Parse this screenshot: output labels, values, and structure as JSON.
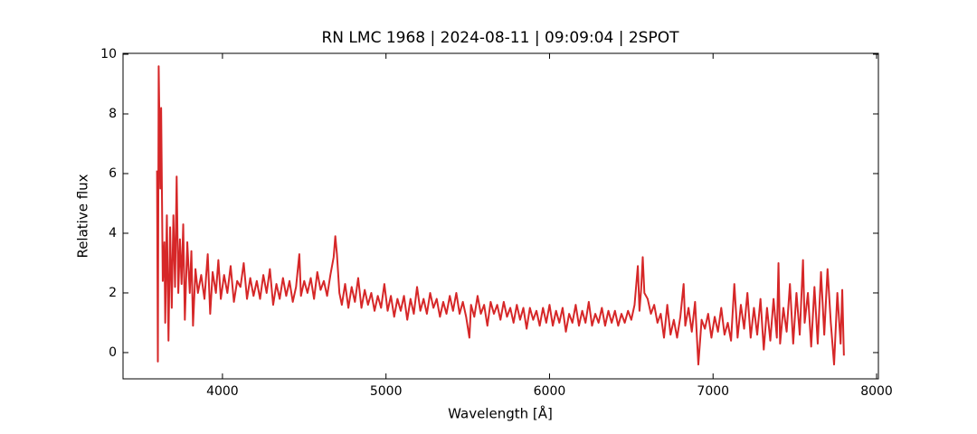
{
  "chart_data": {
    "type": "line",
    "title": "RN LMC 1968 | 2024-08-11 | 09:09:04 | 2SPOT",
    "x_label": "Wavelength [Å]",
    "y_label": "Relative flux",
    "xlim": [
      3392,
      8011
    ],
    "ylim": [
      -0.88,
      10.03
    ],
    "xticks": [
      4000,
      5000,
      6000,
      7000,
      8000
    ],
    "yticks": [
      0,
      2,
      4,
      6,
      8,
      10
    ],
    "x": [
      3600,
      3605,
      3610,
      3620,
      3625,
      3635,
      3645,
      3650,
      3660,
      3670,
      3680,
      3690,
      3700,
      3710,
      3720,
      3730,
      3740,
      3750,
      3760,
      3770,
      3785,
      3800,
      3810,
      3820,
      3835,
      3850,
      3870,
      3890,
      3910,
      3925,
      3940,
      3960,
      3975,
      3990,
      4010,
      4030,
      4050,
      4070,
      4090,
      4110,
      4130,
      4150,
      4170,
      4190,
      4210,
      4230,
      4250,
      4270,
      4290,
      4310,
      4330,
      4350,
      4370,
      4390,
      4410,
      4430,
      4450,
      4470,
      4480,
      4500,
      4520,
      4540,
      4560,
      4580,
      4600,
      4620,
      4640,
      4660,
      4680,
      4690,
      4700,
      4715,
      4730,
      4750,
      4770,
      4790,
      4810,
      4830,
      4850,
      4870,
      4890,
      4910,
      4930,
      4950,
      4970,
      4990,
      5010,
      5030,
      5050,
      5070,
      5090,
      5110,
      5130,
      5150,
      5170,
      5190,
      5210,
      5230,
      5250,
      5270,
      5290,
      5310,
      5330,
      5350,
      5370,
      5390,
      5410,
      5430,
      5450,
      5470,
      5490,
      5510,
      5520,
      5540,
      5560,
      5580,
      5600,
      5620,
      5640,
      5660,
      5680,
      5700,
      5720,
      5740,
      5760,
      5780,
      5800,
      5820,
      5840,
      5860,
      5880,
      5900,
      5920,
      5940,
      5960,
      5980,
      6000,
      6020,
      6040,
      6060,
      6080,
      6100,
      6120,
      6140,
      6160,
      6180,
      6200,
      6220,
      6240,
      6260,
      6280,
      6300,
      6320,
      6340,
      6360,
      6380,
      6400,
      6420,
      6440,
      6460,
      6480,
      6500,
      6520,
      6540,
      6550,
      6560,
      6570,
      6580,
      6600,
      6620,
      6640,
      6660,
      6680,
      6700,
      6720,
      6740,
      6760,
      6780,
      6800,
      6820,
      6830,
      6850,
      6870,
      6890,
      6910,
      6930,
      6950,
      6970,
      6990,
      7010,
      7030,
      7050,
      7070,
      7090,
      7110,
      7130,
      7150,
      7170,
      7190,
      7210,
      7230,
      7250,
      7270,
      7290,
      7310,
      7330,
      7350,
      7370,
      7390,
      7400,
      7410,
      7430,
      7450,
      7470,
      7490,
      7510,
      7530,
      7550,
      7560,
      7580,
      7600,
      7620,
      7640,
      7660,
      7680,
      7700,
      7720,
      7740,
      7760,
      7780,
      7790,
      7800
    ],
    "series": [
      {
        "color": "#d62728",
        "values": [
          6.1,
          -0.3,
          9.6,
          5.5,
          8.2,
          2.4,
          3.7,
          1.0,
          4.6,
          0.4,
          4.2,
          1.5,
          4.6,
          2.2,
          5.9,
          2.0,
          3.8,
          2.3,
          4.3,
          1.1,
          3.7,
          2.0,
          3.4,
          0.9,
          2.8,
          2.0,
          2.6,
          1.8,
          3.3,
          1.3,
          2.7,
          2.0,
          3.1,
          1.8,
          2.6,
          2.0,
          2.9,
          1.7,
          2.4,
          2.2,
          3.0,
          1.8,
          2.5,
          1.9,
          2.4,
          1.8,
          2.6,
          2.0,
          2.8,
          1.6,
          2.3,
          1.8,
          2.5,
          1.9,
          2.4,
          1.7,
          2.2,
          3.3,
          1.9,
          2.4,
          2.0,
          2.5,
          1.8,
          2.7,
          2.1,
          2.4,
          1.9,
          2.6,
          3.2,
          3.9,
          3.3,
          2.0,
          1.6,
          2.3,
          1.5,
          2.2,
          1.7,
          2.5,
          1.5,
          2.1,
          1.6,
          2.0,
          1.4,
          1.9,
          1.5,
          2.3,
          1.4,
          1.9,
          1.2,
          1.8,
          1.4,
          1.9,
          1.1,
          1.8,
          1.3,
          2.2,
          1.4,
          1.8,
          1.3,
          2.0,
          1.5,
          1.8,
          1.2,
          1.7,
          1.3,
          1.9,
          1.4,
          2.0,
          1.3,
          1.7,
          1.2,
          0.5,
          1.6,
          1.2,
          1.9,
          1.3,
          1.6,
          0.9,
          1.7,
          1.3,
          1.6,
          1.1,
          1.7,
          1.2,
          1.5,
          1.0,
          1.6,
          1.1,
          1.5,
          0.8,
          1.5,
          1.1,
          1.4,
          0.9,
          1.5,
          1.0,
          1.6,
          0.9,
          1.4,
          1.0,
          1.5,
          0.7,
          1.3,
          1.0,
          1.6,
          0.9,
          1.4,
          1.0,
          1.7,
          0.9,
          1.3,
          1.0,
          1.5,
          0.9,
          1.4,
          1.0,
          1.4,
          0.9,
          1.3,
          1.0,
          1.4,
          1.1,
          1.6,
          2.9,
          1.4,
          2.1,
          3.2,
          2.0,
          1.8,
          1.3,
          1.6,
          1.0,
          1.3,
          0.5,
          1.6,
          0.6,
          1.1,
          0.5,
          1.2,
          2.3,
          0.9,
          1.5,
          0.7,
          1.7,
          -0.4,
          1.1,
          0.8,
          1.3,
          0.5,
          1.2,
          0.7,
          1.5,
          0.6,
          1.0,
          0.4,
          2.3,
          0.5,
          1.6,
          0.8,
          2.0,
          0.5,
          1.5,
          0.6,
          1.8,
          0.1,
          1.5,
          0.4,
          1.8,
          0.5,
          3.0,
          0.3,
          1.5,
          0.7,
          2.3,
          0.3,
          2.0,
          0.6,
          3.1,
          1.0,
          2.0,
          0.2,
          2.2,
          0.3,
          2.7,
          0.6,
          2.8,
          1.0,
          -0.4,
          2.0,
          0.3,
          2.1,
          -0.1
        ]
      }
    ]
  }
}
